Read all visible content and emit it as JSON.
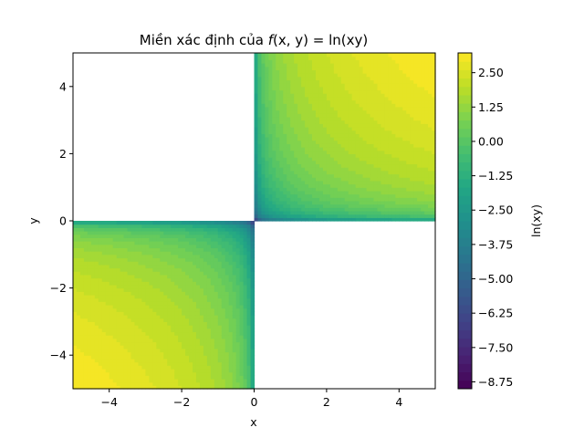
{
  "chart_data": {
    "type": "heatmap",
    "title": {
      "prefix": "Miền xác định của ",
      "math_f": "f",
      "math_args": "(x, y) = ln(xy)"
    },
    "xlabel": "x",
    "ylabel": "y",
    "xlim": [
      -5,
      5
    ],
    "ylim": [
      -5,
      5
    ],
    "x_ticks": [
      -4,
      -2,
      0,
      2,
      4
    ],
    "y_ticks": [
      -4,
      -2,
      0,
      2,
      4
    ],
    "x_tick_labels": [
      "−4",
      "−2",
      "0",
      "2",
      "4"
    ],
    "y_tick_labels": [
      "−4",
      "−2",
      "0",
      "2",
      "4"
    ],
    "function": "ln(x*y)",
    "domain_note": "defined only where x*y > 0 (quadrants I and III); elsewhere blank",
    "grid": false,
    "colormap": "viridis",
    "colorbar": {
      "label": "ln(xy)",
      "range": [
        -9.0,
        3.2188
      ],
      "ticks": [
        2.5,
        1.25,
        0.0,
        -1.25,
        -2.5,
        -3.75,
        -5.0,
        -6.25,
        -7.5,
        -8.75
      ],
      "tick_labels": [
        "2.50",
        "1.25",
        "0.00",
        "−1.25",
        "−2.50",
        "−3.75",
        "−5.00",
        "−6.25",
        "−7.50",
        "−8.75"
      ]
    }
  }
}
